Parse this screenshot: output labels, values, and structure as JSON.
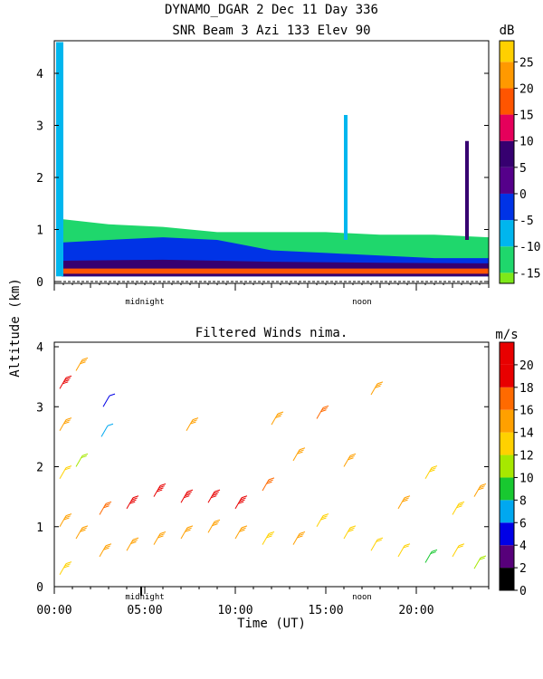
{
  "header": {
    "line1": "DYNAMO_DGAR    2 Dec 11  Day 336",
    "line2": "SNR Beam 3 Azi 133 Elev 90"
  },
  "shared": {
    "ylabel": "Altitude (km)",
    "xlabel": "Time (UT)",
    "marker_midnight": "midnight",
    "marker_noon": "noon"
  },
  "chart_data": [
    {
      "type": "heatmap",
      "title": "SNR Beam 3 Azi 133 Elev 90",
      "ylabel": "Altitude (km)",
      "xlim": [
        0,
        24
      ],
      "ylim": [
        0,
        4.6
      ],
      "yticks": [
        0,
        1,
        2,
        3,
        4
      ],
      "ytick_labels": [
        "0",
        "1",
        "2",
        "3",
        "4"
      ],
      "colorbar": {
        "unit": "dB",
        "levels": [
          -17,
          -15,
          -10,
          -5,
          0,
          5,
          10,
          15,
          20,
          25,
          29
        ],
        "tick_values": [
          -15,
          -10,
          -5,
          0,
          5,
          10,
          15,
          20,
          25
        ],
        "tick_labels": [
          "-15",
          "-10",
          "-5",
          "0",
          "5",
          "10",
          "15",
          "20",
          "25"
        ],
        "colors": [
          "#7de819",
          "#1fd76c",
          "#00b6ee",
          "#0033e6",
          "#55008a",
          "#360070",
          "#e5005b",
          "#ff5500",
          "#ff9900",
          "#ffd000"
        ]
      },
      "layers": [
        {
          "name": "clear-air echo",
          "level_db": -12,
          "extent": [
            [
              0.4,
              0.1,
              1.2
            ],
            [
              3,
              0.1,
              1.1
            ],
            [
              6,
              0.1,
              1.05
            ],
            [
              9,
              0.1,
              0.95
            ],
            [
              12,
              0.1,
              0.95
            ],
            [
              15,
              0.1,
              0.95
            ],
            [
              18,
              0.1,
              0.9
            ],
            [
              21,
              0.1,
              0.9
            ],
            [
              24,
              0.1,
              0.85
            ]
          ]
        },
        {
          "name": "boundary layer",
          "level_db": -4,
          "extent": [
            [
              0.4,
              0.1,
              0.75
            ],
            [
              3,
              0.1,
              0.8
            ],
            [
              6,
              0.1,
              0.85
            ],
            [
              9,
              0.1,
              0.8
            ],
            [
              12,
              0.1,
              0.6
            ],
            [
              15,
              0.1,
              0.55
            ],
            [
              18,
              0.1,
              0.5
            ],
            [
              21,
              0.1,
              0.45
            ],
            [
              24,
              0.1,
              0.45
            ]
          ]
        },
        {
          "name": "strong return",
          "level_db": 7,
          "extent": [
            [
              0.4,
              0.1,
              0.4
            ],
            [
              6,
              0.1,
              0.42
            ],
            [
              12,
              0.1,
              0.38
            ],
            [
              18,
              0.1,
              0.36
            ],
            [
              24,
              0.1,
              0.35
            ]
          ]
        },
        {
          "name": "surface clutter",
          "level_db": 17,
          "extent": [
            [
              0.4,
              0.15,
              0.25
            ],
            [
              24,
              0.15,
              0.25
            ]
          ]
        },
        {
          "name": "early-morning column",
          "level_db": -6,
          "extent": [
            [
              0.1,
              0.1,
              4.6
            ],
            [
              0.5,
              0.1,
              4.6
            ]
          ]
        },
        {
          "name": "plume 16.1h",
          "level_db": -8,
          "extent": [
            [
              16.1,
              0.8,
              3.2
            ]
          ]
        },
        {
          "name": "plume 22.8h",
          "level_db": 6,
          "extent": [
            [
              22.8,
              0.8,
              2.7
            ]
          ]
        }
      ]
    },
    {
      "type": "barbs",
      "title": "Filtered Winds nima.",
      "xlabel": "Time (UT)",
      "ylabel": "Altitude (km)",
      "xlim": [
        0,
        24
      ],
      "ylim": [
        0,
        4.1
      ],
      "xticks": [
        0,
        5,
        10,
        15,
        20
      ],
      "xtick_labels": [
        "00:00",
        "05:00",
        "10:00",
        "15:00",
        "20:00"
      ],
      "yticks": [
        0,
        1,
        2,
        3,
        4
      ],
      "ytick_labels": [
        "0",
        "1",
        "2",
        "3",
        "4"
      ],
      "colorbar": {
        "unit": "m/s",
        "levels": [
          0,
          2,
          4,
          6,
          8,
          10,
          12,
          14,
          16,
          18,
          20,
          22
        ],
        "tick_values": [
          0,
          2,
          4,
          6,
          8,
          10,
          12,
          14,
          16,
          18,
          20
        ],
        "tick_labels": [
          "0",
          "2",
          "4",
          "6",
          "8",
          "10",
          "12",
          "14",
          "16",
          "18",
          "20"
        ],
        "colors": [
          "#000000",
          "#57007a",
          "#0000e6",
          "#00a8f0",
          "#18c830",
          "#a6e800",
          "#ffd100",
          "#ffa000",
          "#ff6a00",
          "#e80000",
          "#e80000"
        ]
      },
      "direction_deg": 300,
      "wind_field": [
        {
          "time": 0.3,
          "height": 0.2,
          "speed": 13
        },
        {
          "time": 0.3,
          "height": 1.0,
          "speed": 14
        },
        {
          "time": 0.3,
          "height": 1.8,
          "speed": 12
        },
        {
          "time": 0.3,
          "height": 2.6,
          "speed": 14
        },
        {
          "time": 0.3,
          "height": 3.3,
          "speed": 18
        },
        {
          "time": 1.2,
          "height": 0.8,
          "speed": 14
        },
        {
          "time": 1.2,
          "height": 2.0,
          "speed": 10
        },
        {
          "time": 1.2,
          "height": 3.6,
          "speed": 14
        },
        {
          "time": 2.5,
          "height": 0.5,
          "speed": 14
        },
        {
          "time": 2.5,
          "height": 1.2,
          "speed": 16
        },
        {
          "time": 2.6,
          "height": 2.5,
          "speed": 6
        },
        {
          "time": 2.7,
          "height": 3.0,
          "speed": 4
        },
        {
          "time": 4.0,
          "height": 0.6,
          "speed": 15
        },
        {
          "time": 4.0,
          "height": 1.3,
          "speed": 19
        },
        {
          "time": 5.5,
          "height": 0.7,
          "speed": 15
        },
        {
          "time": 5.5,
          "height": 1.5,
          "speed": 19
        },
        {
          "time": 7.0,
          "height": 0.8,
          "speed": 15
        },
        {
          "time": 7.0,
          "height": 1.4,
          "speed": 20
        },
        {
          "time": 7.3,
          "height": 2.6,
          "speed": 14
        },
        {
          "time": 8.5,
          "height": 0.9,
          "speed": 14
        },
        {
          "time": 8.5,
          "height": 1.4,
          "speed": 19
        },
        {
          "time": 10.0,
          "height": 0.8,
          "speed": 14
        },
        {
          "time": 10.0,
          "height": 1.3,
          "speed": 18
        },
        {
          "time": 11.5,
          "height": 0.7,
          "speed": 13
        },
        {
          "time": 11.5,
          "height": 1.6,
          "speed": 17
        },
        {
          "time": 12.0,
          "height": 2.7,
          "speed": 14
        },
        {
          "time": 13.2,
          "height": 0.7,
          "speed": 14
        },
        {
          "time": 13.2,
          "height": 2.1,
          "speed": 15
        },
        {
          "time": 14.5,
          "height": 1.0,
          "speed": 13
        },
        {
          "time": 14.5,
          "height": 2.8,
          "speed": 16
        },
        {
          "time": 16.0,
          "height": 0.8,
          "speed": 13
        },
        {
          "time": 16.0,
          "height": 2.0,
          "speed": 15
        },
        {
          "time": 17.5,
          "height": 0.6,
          "speed": 12
        },
        {
          "time": 17.5,
          "height": 3.2,
          "speed": 15
        },
        {
          "time": 19.0,
          "height": 0.5,
          "speed": 12
        },
        {
          "time": 19.0,
          "height": 1.3,
          "speed": 14
        },
        {
          "time": 20.5,
          "height": 0.4,
          "speed": 9
        },
        {
          "time": 20.5,
          "height": 1.8,
          "speed": 13
        },
        {
          "time": 22.0,
          "height": 0.5,
          "speed": 12
        },
        {
          "time": 22.0,
          "height": 1.2,
          "speed": 13
        },
        {
          "time": 23.2,
          "height": 0.3,
          "speed": 10
        },
        {
          "time": 23.2,
          "height": 1.5,
          "speed": 14
        }
      ]
    }
  ]
}
